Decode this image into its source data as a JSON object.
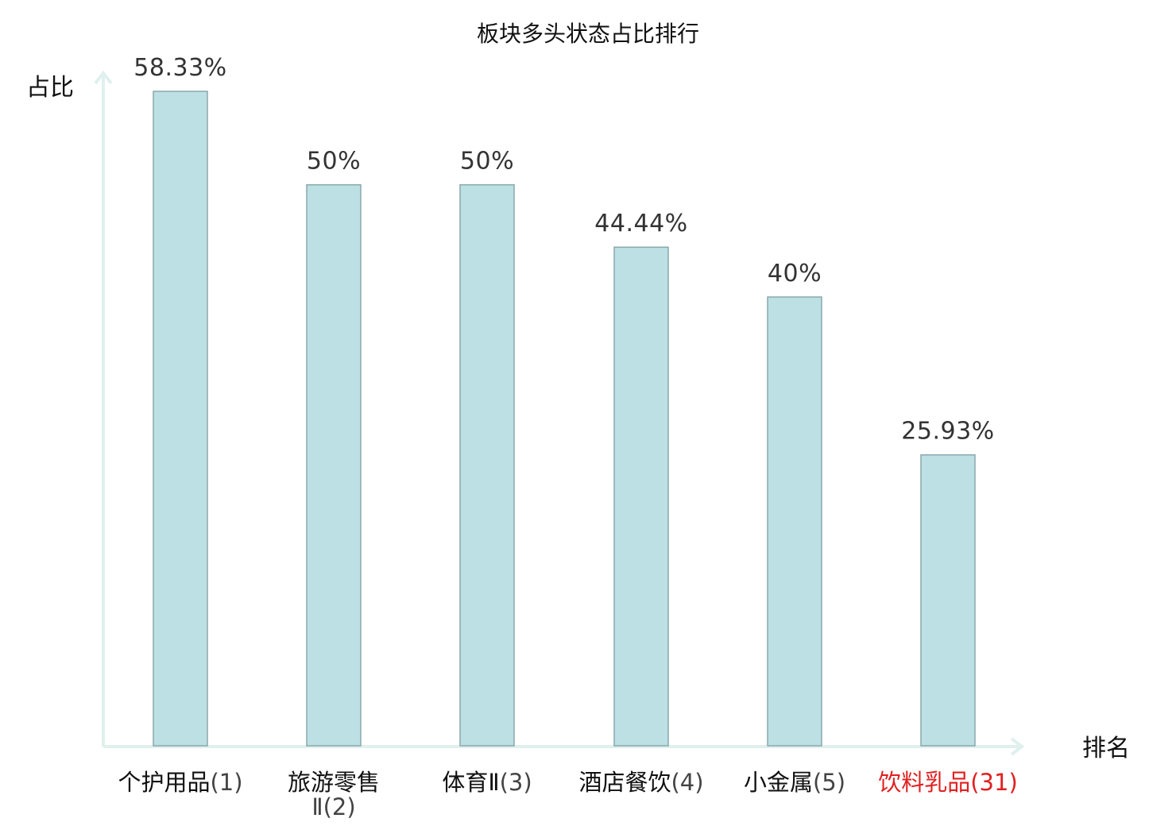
{
  "chart_data": {
    "type": "bar",
    "title": "板块多头状态占比排行",
    "xlabel": "排名",
    "ylabel": "占比",
    "ylim": [
      0,
      58.33
    ],
    "categories": [
      {
        "name": "个护用品",
        "rank": "(1)",
        "highlight": false
      },
      {
        "name": "旅游零售",
        "name_line2": "Ⅱ",
        "rank": "(2)",
        "highlight": false
      },
      {
        "name": "体育Ⅱ",
        "rank": "(3)",
        "highlight": false
      },
      {
        "name": "酒店餐饮",
        "rank": "(4)",
        "highlight": false
      },
      {
        "name": "小金属",
        "rank": "(5)",
        "highlight": false
      },
      {
        "name": "饮料乳品",
        "rank": "(31)",
        "highlight": true
      }
    ],
    "values": [
      58.33,
      50,
      50,
      44.44,
      40,
      25.93
    ],
    "value_labels": [
      "58.33%",
      "50%",
      "50%",
      "44.44%",
      "40%",
      "25.93%"
    ],
    "grid": false,
    "legend": "none",
    "colors": {
      "bar_fill": "#bce0e3",
      "bar_stroke": "#8aa8ac",
      "axis": "#dff0ee",
      "highlight_text": "#e02020",
      "normal_text": "#111111"
    }
  }
}
